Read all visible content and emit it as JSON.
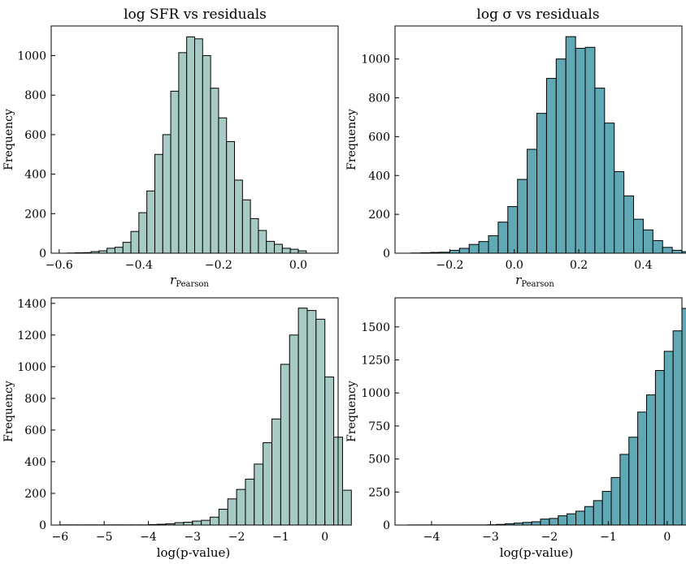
{
  "chart_data": [
    {
      "type": "bar",
      "title": "log SFR vs residuals",
      "xlabel": "r",
      "xlabel_sub": "Pearson",
      "ylabel": "Frequency",
      "color": "#a7cbc4",
      "edge_color": "#000000",
      "xlim": [
        -0.62,
        0.1
      ],
      "ylim": [
        0,
        1150
      ],
      "xticks": [
        -0.6,
        -0.4,
        -0.2,
        0.0
      ],
      "xtick_labels": [
        "−0.6",
        "−0.4",
        "−0.2",
        "0.0"
      ],
      "yticks": [
        0,
        200,
        400,
        600,
        800,
        1000
      ],
      "ytick_labels": [
        "0",
        "200",
        "400",
        "600",
        "800",
        "1000"
      ],
      "bin_start": -0.58,
      "bin_width": 0.02,
      "values": [
        1,
        2,
        3,
        8,
        12,
        25,
        30,
        55,
        110,
        205,
        315,
        500,
        600,
        820,
        1015,
        1095,
        1085,
        1000,
        835,
        685,
        565,
        370,
        270,
        175,
        115,
        60,
        45,
        25,
        20,
        12
      ]
    },
    {
      "type": "bar",
      "title": "log σ vs residuals",
      "xlabel": "r",
      "xlabel_sub": "Pearson",
      "ylabel": "Frequency",
      "color": "#5fa8b4",
      "edge_color": "#000000",
      "xlim": [
        -0.37,
        0.52
      ],
      "ylim": [
        0,
        1170
      ],
      "xticks": [
        -0.2,
        0.0,
        0.2,
        0.4
      ],
      "xtick_labels": [
        "−0.2",
        "0.0",
        "0.2",
        "0.4"
      ],
      "yticks": [
        0,
        200,
        400,
        600,
        800,
        1000
      ],
      "ytick_labels": [
        "0",
        "200",
        "400",
        "600",
        "800",
        "1000"
      ],
      "bin_start": -0.32,
      "bin_width": 0.03,
      "values": [
        1,
        2,
        4,
        5,
        15,
        25,
        45,
        60,
        90,
        160,
        240,
        380,
        535,
        720,
        900,
        1000,
        1115,
        1055,
        1060,
        850,
        670,
        420,
        295,
        175,
        120,
        65,
        30,
        15,
        8,
        3
      ]
    },
    {
      "type": "bar",
      "title": "",
      "xlabel": "log(p-value)",
      "xlabel_sub": "",
      "ylabel": "Frequency",
      "color": "#a7cbc4",
      "edge_color": "#000000",
      "xlim": [
        -6.2,
        0.3
      ],
      "ylim": [
        0,
        1435
      ],
      "xticks": [
        -6,
        -5,
        -4,
        -3,
        -2,
        -1,
        0
      ],
      "xtick_labels": [
        "−6",
        "−5",
        "−4",
        "−3",
        "−2",
        "−1",
        "0"
      ],
      "yticks": [
        0,
        200,
        400,
        600,
        800,
        1000,
        1200,
        1400
      ],
      "ytick_labels": [
        "0",
        "200",
        "400",
        "600",
        "800",
        "1000",
        "1200",
        "1400"
      ],
      "bin_start": -6.0,
      "bin_width": 0.2,
      "values": [
        1,
        1,
        1,
        1,
        1,
        1,
        1,
        1,
        1,
        1,
        3,
        5,
        8,
        15,
        18,
        25,
        30,
        50,
        100,
        165,
        225,
        290,
        385,
        520,
        670,
        1015,
        1200,
        1370,
        1355,
        1300,
        935,
        555,
        220
      ]
    },
    {
      "type": "bar",
      "title": "",
      "xlabel": "log(p-value)",
      "xlabel_sub": "",
      "ylabel": "Frequency",
      "color": "#5fa8b4",
      "edge_color": "#000000",
      "xlim": [
        -4.62,
        0.25
      ],
      "ylim": [
        0,
        1720
      ],
      "xticks": [
        -4,
        -3,
        -2,
        -1,
        0
      ],
      "xtick_labels": [
        "−4",
        "−3",
        "−2",
        "−1",
        "0"
      ],
      "yticks": [
        0,
        250,
        500,
        750,
        1000,
        1250,
        1500
      ],
      "ytick_labels": [
        "0",
        "250",
        "500",
        "750",
        "1000",
        "1250",
        "1500"
      ],
      "bin_start": -4.4,
      "bin_width": 0.15,
      "values": [
        1,
        1,
        1,
        1,
        1,
        1,
        1,
        1,
        1,
        2,
        5,
        10,
        15,
        20,
        25,
        45,
        50,
        70,
        85,
        105,
        140,
        185,
        255,
        360,
        535,
        665,
        855,
        985,
        1170,
        1315,
        1470,
        1640
      ]
    }
  ]
}
